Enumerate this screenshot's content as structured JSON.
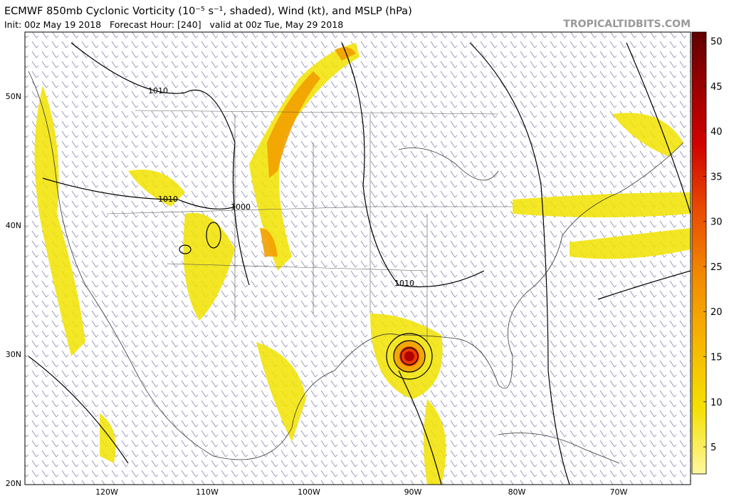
{
  "header": {
    "title": "ECMWF 850mb Cyclonic Vorticity (10⁻⁵ s⁻¹, shaded), Wind (kt), and MSLP (hPa)",
    "subtitle": "Init: 00z May 19 2018   Forecast Hour: [240]   valid at 00z Tue, May 29 2018",
    "site": "TROPICALTIDBITS.COM"
  },
  "map": {
    "lat_labels": [
      "50N",
      "40N",
      "30N",
      "20N"
    ],
    "lon_labels": [
      "120W",
      "110W",
      "100W",
      "90W",
      "80W",
      "70W"
    ],
    "contour_labels": [
      "1010",
      "1010",
      "1000",
      "1010"
    ]
  },
  "colorbar": {
    "min": 2,
    "max": 51,
    "ticks": [
      5,
      10,
      15,
      20,
      25,
      30,
      35,
      40,
      45,
      50
    ]
  }
}
